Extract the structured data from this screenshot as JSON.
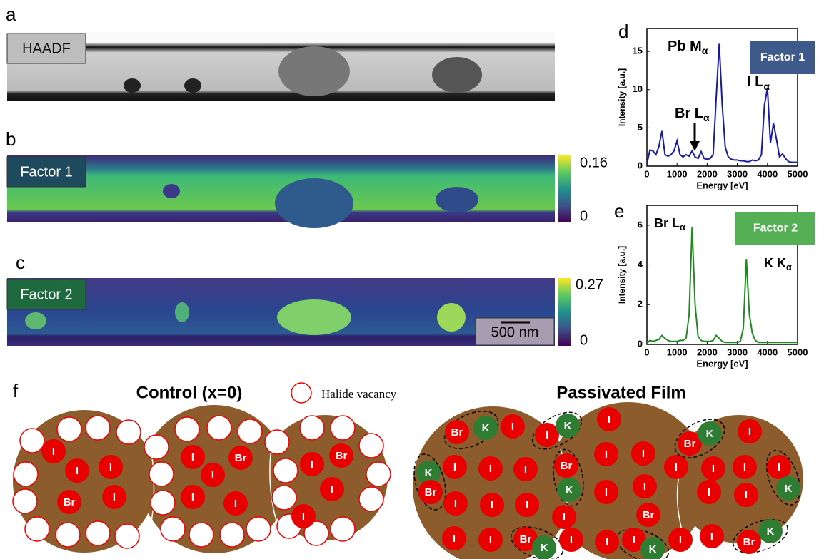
{
  "panel_labels": [
    "a",
    "b",
    "c",
    "d",
    "e",
    "f"
  ],
  "images": [
    {
      "tag": "HAADF"
    },
    {
      "tag": "Factor 1",
      "colorbar_ticks": [
        "0.16",
        "0"
      ]
    },
    {
      "tag": "Factor 2",
      "colorbar_ticks": [
        "0.27",
        "0"
      ],
      "scalebar": "500 nm"
    }
  ],
  "chart_data": [
    {
      "type": "line",
      "xlabel": "Energy [eV]",
      "ylabel": "Intensity [a.u.]",
      "xlim": [
        0,
        5000
      ],
      "xticks": [
        0,
        1000,
        2000,
        3000,
        4000,
        5000
      ],
      "ylim": [
        0,
        18
      ],
      "yticks": [
        0,
        5,
        10,
        15
      ],
      "x": [
        0,
        100,
        200,
        300,
        400,
        500,
        600,
        700,
        800,
        900,
        1000,
        1100,
        1200,
        1300,
        1400,
        1500,
        1600,
        1700,
        1800,
        1900,
        2000,
        2100,
        2200,
        2300,
        2400,
        2500,
        2600,
        2700,
        2800,
        2900,
        3000,
        3100,
        3200,
        3300,
        3400,
        3500,
        3600,
        3700,
        3800,
        3900,
        4000,
        4100,
        4200,
        4300,
        4400,
        4500,
        4600,
        4700,
        4800,
        4900,
        5000
      ],
      "series": [
        {
          "name": "Factor 1",
          "color": "#1a1aa0",
          "legend_color": "#3d5a8a",
          "values": [
            0.3,
            2.1,
            2.0,
            1.5,
            2.6,
            4.6,
            1.5,
            1.3,
            1.5,
            2.0,
            3.3,
            1.5,
            1.2,
            1.5,
            1.3,
            2.0,
            1.2,
            1.0,
            1.9,
            1.0,
            0.9,
            1.0,
            1.5,
            9.0,
            16.0,
            8.0,
            2.5,
            1.2,
            0.9,
            0.8,
            0.8,
            0.7,
            0.7,
            0.6,
            0.6,
            0.8,
            0.7,
            0.8,
            1.5,
            8.0,
            10.2,
            3.0,
            5.6,
            3.5,
            1.2,
            1.6,
            1.0,
            0.6,
            0.5,
            0.5,
            0.5
          ]
        }
      ],
      "annotations": [
        {
          "text": "Pb M",
          "sub": "α"
        },
        {
          "text": "I L",
          "sub": "α"
        },
        {
          "text": "Br L",
          "sub": "α"
        }
      ]
    },
    {
      "type": "line",
      "xlabel": "Energy [eV]",
      "ylabel": "Intensity [a.u.]",
      "xlim": [
        0,
        5000
      ],
      "xticks": [
        0,
        1000,
        2000,
        3000,
        4000,
        5000
      ],
      "ylim": [
        0,
        7
      ],
      "yticks": [
        0,
        2,
        4,
        6
      ],
      "x": [
        0,
        100,
        200,
        300,
        400,
        500,
        600,
        700,
        800,
        900,
        1000,
        1100,
        1200,
        1300,
        1400,
        1500,
        1600,
        1700,
        1800,
        1900,
        2000,
        2100,
        2200,
        2300,
        2400,
        2500,
        2600,
        2700,
        2800,
        2900,
        3000,
        3100,
        3200,
        3300,
        3400,
        3500,
        3600,
        3700,
        3800,
        3900,
        4000,
        4100,
        4200,
        4300,
        4400,
        4500,
        4600,
        4700,
        4800,
        4900,
        5000
      ],
      "series": [
        {
          "name": "Factor 2",
          "color": "#1f8a1f",
          "legend_color": "#55b055",
          "values": [
            0.05,
            0.2,
            0.15,
            0.2,
            0.25,
            0.45,
            0.3,
            0.2,
            0.15,
            0.15,
            0.15,
            0.2,
            0.2,
            0.3,
            1.5,
            5.9,
            2.0,
            0.4,
            0.2,
            0.15,
            0.15,
            0.15,
            0.2,
            0.45,
            0.3,
            0.15,
            0.1,
            0.1,
            0.1,
            0.1,
            0.1,
            0.15,
            0.8,
            4.3,
            1.5,
            0.55,
            0.2,
            0.1,
            0.1,
            0.1,
            0.1,
            0.1,
            0.1,
            0.1,
            0.1,
            0.1,
            0.1,
            0.1,
            0.1,
            0.1,
            0.1
          ]
        }
      ],
      "annotations": [
        {
          "text": "Br L",
          "sub": "α"
        },
        {
          "text": "K K",
          "sub": "α"
        }
      ]
    }
  ],
  "diagram": {
    "control": {
      "title": "Control (x=0)",
      "legend": "Halide vacancy",
      "ions": [
        "I",
        "I",
        "I",
        "Br",
        "I",
        "I",
        "Br",
        "I",
        "I",
        "I",
        "I",
        "Br",
        "I",
        "I"
      ]
    },
    "passivated": {
      "title": "Passivated Film",
      "ions": [
        "Br",
        "K",
        "I",
        "I",
        "K",
        "I",
        "Br",
        "K",
        "I",
        "K",
        "Br",
        "I",
        "I",
        "I",
        "Br",
        "K",
        "I",
        "I",
        "I",
        "I",
        "I",
        "I",
        "K",
        "I",
        "I",
        "I",
        "I",
        "I",
        "Br",
        "I",
        "I",
        "I",
        "I",
        "I",
        "Br",
        "K",
        "I",
        "I",
        "I",
        "K",
        "I",
        "I",
        "Br",
        "K"
      ]
    }
  }
}
